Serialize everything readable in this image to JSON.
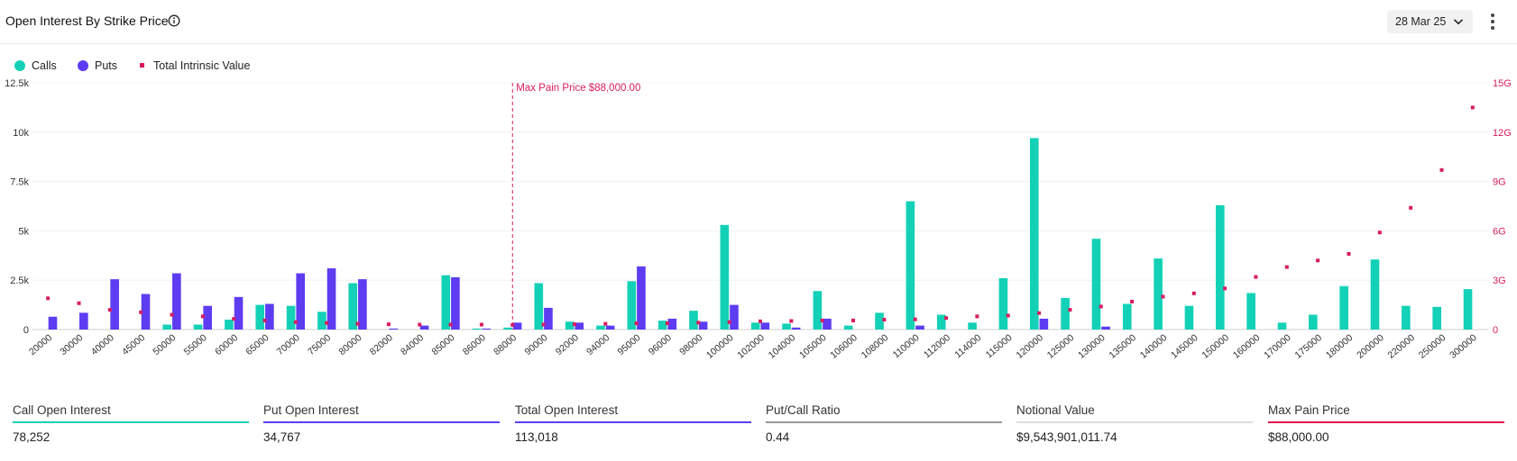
{
  "header": {
    "title": "Open Interest By Strike Price",
    "date_selected": "28 Mar 25"
  },
  "legend": {
    "calls": "Calls",
    "puts": "Puts",
    "tiv": "Total Intrinsic Value"
  },
  "colors": {
    "calls": "#13d1b6",
    "puts": "#5d3cf2",
    "tiv": "#d81b60",
    "max_pain": "#d81b60",
    "gray": "#999999"
  },
  "chart_data": {
    "type": "bar",
    "categories": [
      "20000",
      "30000",
      "40000",
      "45000",
      "50000",
      "55000",
      "60000",
      "65000",
      "70000",
      "75000",
      "80000",
      "82000",
      "84000",
      "85000",
      "86000",
      "88000",
      "90000",
      "92000",
      "94000",
      "95000",
      "96000",
      "98000",
      "100000",
      "102000",
      "104000",
      "105000",
      "106000",
      "108000",
      "110000",
      "112000",
      "114000",
      "115000",
      "120000",
      "125000",
      "130000",
      "135000",
      "140000",
      "145000",
      "150000",
      "160000",
      "170000",
      "175000",
      "180000",
      "200000",
      "220000",
      "250000",
      "300000"
    ],
    "series": [
      {
        "name": "Calls",
        "axis": "left",
        "values": [
          0,
          0,
          0,
          0,
          250,
          250,
          500,
          1250,
          1200,
          900,
          2350,
          0,
          0,
          2750,
          50,
          100,
          2350,
          400,
          200,
          2450,
          450,
          950,
          5300,
          350,
          300,
          1950,
          200,
          850,
          6500,
          750,
          350,
          2600,
          9700,
          1600,
          4600,
          1300,
          3600,
          1200,
          6300,
          1850,
          350,
          750,
          2200,
          3550,
          1200,
          1150,
          2050
        ]
      },
      {
        "name": "Puts",
        "axis": "left",
        "values": [
          650,
          850,
          2550,
          1800,
          2850,
          1200,
          1650,
          1300,
          2850,
          3100,
          2550,
          50,
          200,
          2650,
          50,
          350,
          1100,
          350,
          200,
          3200,
          550,
          400,
          1250,
          350,
          100,
          550,
          0,
          0,
          200,
          0,
          0,
          0,
          550,
          0,
          150,
          0,
          0,
          0,
          0,
          0,
          0,
          0,
          0,
          0,
          0,
          0,
          0
        ]
      },
      {
        "name": "Total Intrinsic Value",
        "axis": "right",
        "type": "scatter",
        "values": [
          1.9,
          1.6,
          1.2,
          1.05,
          0.9,
          0.8,
          0.65,
          0.55,
          0.45,
          0.4,
          0.35,
          0.32,
          0.3,
          0.3,
          0.3,
          0.28,
          0.3,
          0.32,
          0.35,
          0.38,
          0.38,
          0.42,
          0.45,
          0.5,
          0.52,
          0.55,
          0.55,
          0.6,
          0.62,
          0.7,
          0.8,
          0.85,
          1.0,
          1.2,
          1.4,
          1.7,
          2.0,
          2.2,
          2.5,
          3.2,
          3.8,
          4.2,
          4.6,
          5.9,
          7.4,
          9.7,
          13.5
        ]
      }
    ],
    "y_left": {
      "ylim": [
        0,
        12500
      ],
      "ticks": [
        "0",
        "2.5k",
        "5k",
        "7.5k",
        "10k",
        "12.5k"
      ]
    },
    "y_right": {
      "ylim": [
        0,
        15
      ],
      "ticks": [
        "0",
        "3G",
        "6G",
        "9G",
        "12G",
        "15G"
      ]
    },
    "max_pain": {
      "strike": "88000",
      "label": "Max Pain Price $88,000.00"
    },
    "grid": true,
    "legend_position": "top-left"
  },
  "stats": [
    {
      "label": "Call Open Interest",
      "value": "78,252",
      "color": "#13d1b6"
    },
    {
      "label": "Put Open Interest",
      "value": "34,767",
      "color": "#5d3cf2"
    },
    {
      "label": "Total Open Interest",
      "value": "113,018",
      "color": "#5d3cf2"
    },
    {
      "label": "Put/Call Ratio",
      "value": "0.44",
      "color": "#999999"
    },
    {
      "label": "Notional Value",
      "value": "$9,543,901,011.74",
      "color": "#dddddd"
    },
    {
      "label": "Max Pain Price",
      "value": "$88,000.00",
      "color": "#e0144c"
    }
  ]
}
